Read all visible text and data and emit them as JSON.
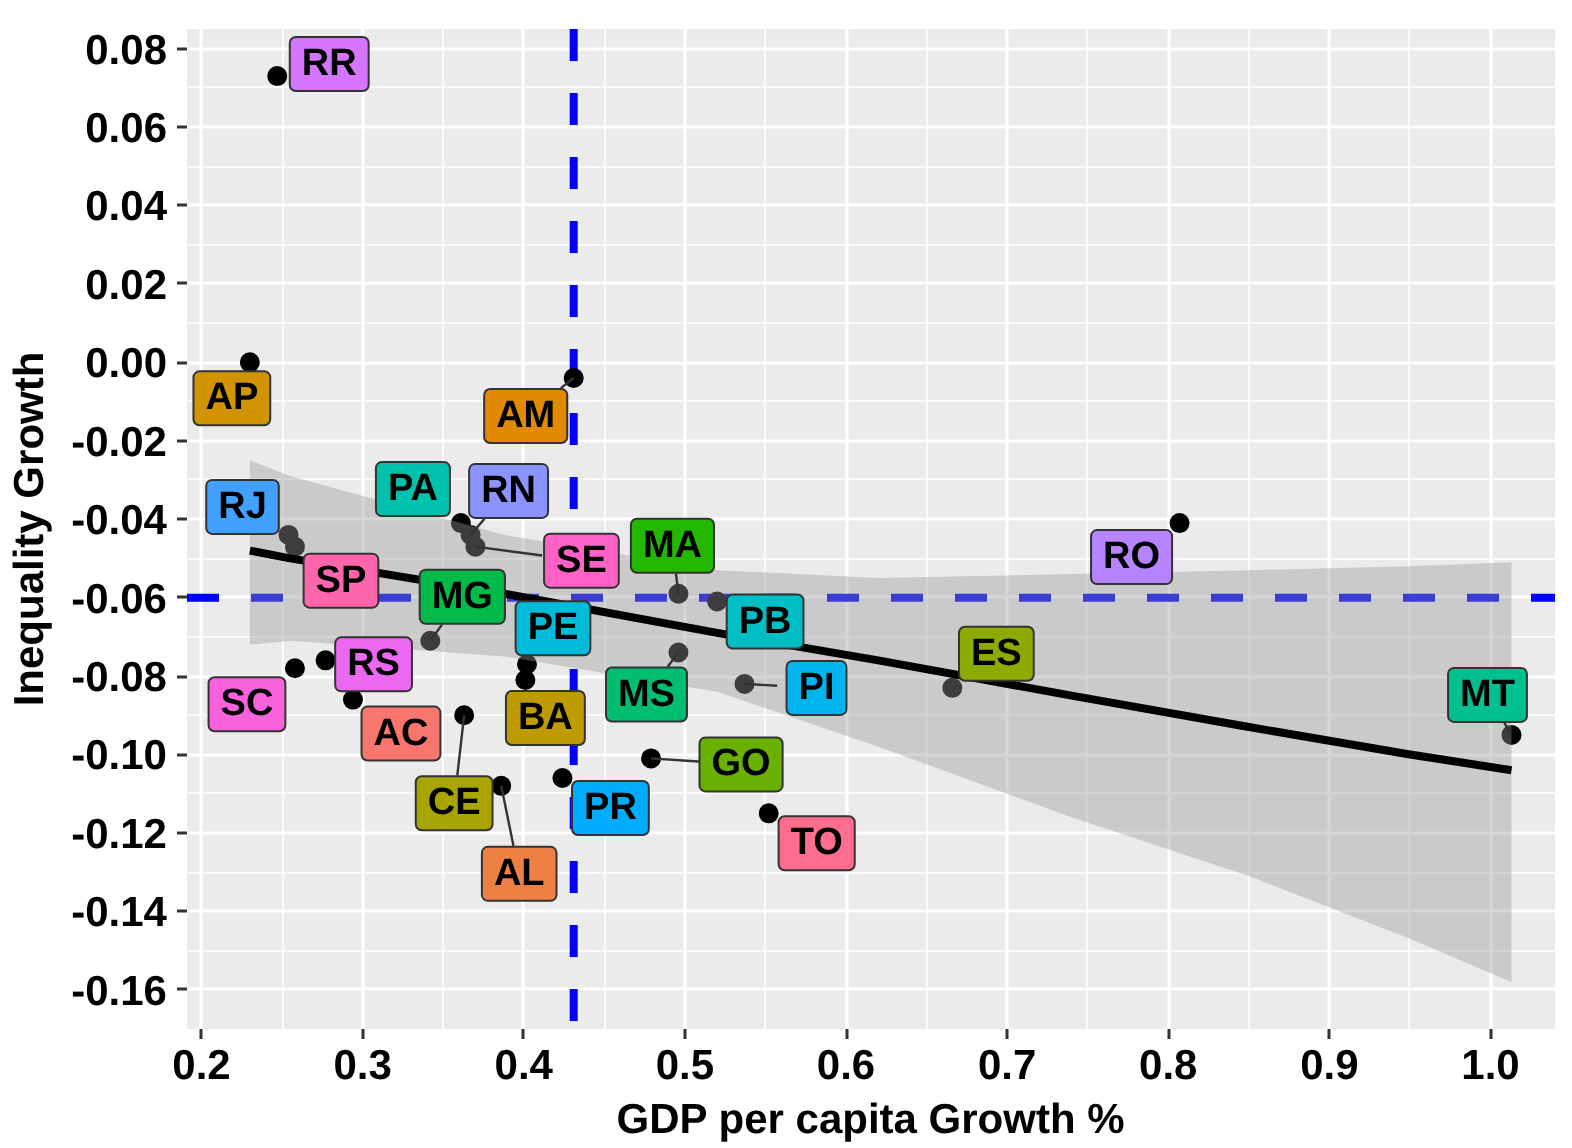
{
  "chart_data": {
    "type": "scatter",
    "xlabel": "GDP per capita Growth %",
    "ylabel": "Inequality Growth",
    "xlim": [
      0.191,
      1.04
    ],
    "ylim": [
      -0.17,
      0.085
    ],
    "xticks": [
      0.2,
      0.3,
      0.4,
      0.5,
      0.6,
      0.7,
      0.8,
      0.9,
      {
        "value": 1,
        "label": "1.0"
      }
    ],
    "yticks": [
      -0.16,
      -0.14,
      -0.12,
      {
        "value": -0.1,
        "label": "-0.10"
      },
      -0.08,
      -0.06,
      -0.04,
      -0.02,
      {
        "value": 0,
        "label": "0.00"
      },
      0.02,
      0.04,
      0.06,
      0.08
    ],
    "grid": true,
    "marker": "circle",
    "ref_lines": [
      {
        "axis": "x",
        "value": 0.431,
        "color": "#0000ff",
        "line_style": "dashed"
      },
      {
        "axis": "y",
        "value": -0.06,
        "color": "#0000ff",
        "line_style": "dashed"
      }
    ],
    "series": [
      {
        "name": "AC",
        "color": "#000000",
        "x": [
          0.294
        ],
        "values": [
          -0.086
        ]
      },
      {
        "name": "AL",
        "color": "#000000",
        "x": [
          0.386
        ],
        "values": [
          -0.108
        ]
      },
      {
        "name": "AM",
        "color": "#000000",
        "x": [
          0.431
        ],
        "values": [
          -0.004
        ]
      },
      {
        "name": "AP",
        "color": "#000000",
        "x": [
          0.23
        ],
        "values": [
          0.0
        ]
      },
      {
        "name": "BA",
        "color": "#000000",
        "x": [
          0.401
        ],
        "values": [
          -0.081
        ]
      },
      {
        "name": "CE",
        "color": "#000000",
        "x": [
          0.363
        ],
        "values": [
          -0.09
        ]
      },
      {
        "name": "ES",
        "color": "#000000",
        "x": [
          0.666
        ],
        "values": [
          -0.083
        ]
      },
      {
        "name": "GO",
        "color": "#000000",
        "x": [
          0.479
        ],
        "values": [
          -0.101
        ]
      },
      {
        "name": "MA",
        "color": "#000000",
        "x": [
          0.496
        ],
        "values": [
          -0.059
        ]
      },
      {
        "name": "MG",
        "color": "#000000",
        "x": [
          0.342
        ],
        "values": [
          -0.071
        ]
      },
      {
        "name": "MS",
        "color": "#000000",
        "x": [
          0.496
        ],
        "values": [
          -0.074
        ]
      },
      {
        "name": "MT",
        "color": "#000000",
        "x": [
          1.013
        ],
        "values": [
          -0.095
        ]
      },
      {
        "name": "PA",
        "color": "#000000",
        "x": [
          0.361
        ],
        "values": [
          -0.041
        ]
      },
      {
        "name": "PB",
        "color": "#000000",
        "x": [
          0.52
        ],
        "values": [
          -0.061
        ]
      },
      {
        "name": "PE",
        "color": "#000000",
        "x": [
          0.402
        ],
        "values": [
          -0.077
        ]
      },
      {
        "name": "PI",
        "color": "#000000",
        "x": [
          0.537
        ],
        "values": [
          -0.082
        ]
      },
      {
        "name": "PR",
        "color": "#000000",
        "x": [
          0.424
        ],
        "values": [
          -0.106
        ]
      },
      {
        "name": "RJ",
        "color": "#000000",
        "x": [
          0.254
        ],
        "values": [
          -0.044
        ]
      },
      {
        "name": "RN",
        "color": "#000000",
        "x": [
          0.367
        ],
        "values": [
          -0.044
        ]
      },
      {
        "name": "RO",
        "color": "#000000",
        "x": [
          0.807
        ],
        "values": [
          -0.041
        ]
      },
      {
        "name": "RR",
        "color": "#000000",
        "x": [
          0.247
        ],
        "values": [
          0.073
        ]
      },
      {
        "name": "RS",
        "color": "#000000",
        "x": [
          0.277
        ],
        "values": [
          -0.076
        ]
      },
      {
        "name": "SC",
        "color": "#000000",
        "x": [
          0.258
        ],
        "values": [
          -0.078
        ]
      },
      {
        "name": "SE",
        "color": "#000000",
        "x": [
          0.37
        ],
        "values": [
          -0.047
        ]
      },
      {
        "name": "SP",
        "color": "#000000",
        "x": [
          0.258
        ],
        "values": [
          -0.047
        ]
      },
      {
        "name": "TO",
        "color": "#000000",
        "x": [
          0.552
        ],
        "values": [
          -0.115
        ]
      },
      {
        "type": "line",
        "marker": "none",
        "color": "#000000",
        "x": [
          0.23,
          0.255,
          0.388,
          0.52,
          0.62,
          0.74,
          0.85,
          0.95,
          1.013
        ],
        "values": [
          -0.048,
          -0.05,
          -0.059,
          -0.069,
          -0.076,
          -0.085,
          -0.093,
          -0.1,
          -0.104
        ],
        "lower": [
          -0.072,
          -0.071,
          -0.075,
          -0.084,
          -0.098,
          -0.116,
          -0.131,
          -0.147,
          -0.158
        ],
        "upper": [
          -0.025,
          -0.029,
          -0.044,
          -0.053,
          -0.055,
          -0.054,
          -0.053,
          -0.052,
          -0.051
        ]
      }
    ]
  }
}
